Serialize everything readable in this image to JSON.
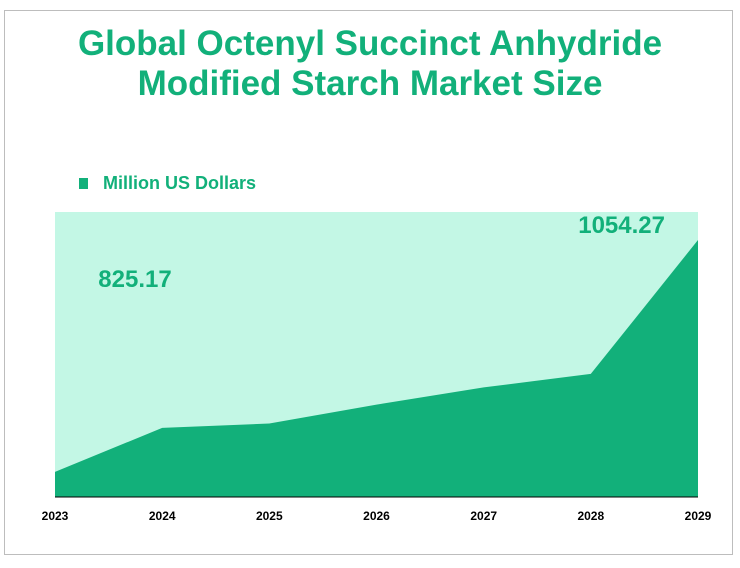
{
  "chart_data": {
    "type": "area",
    "title_lines": [
      "Global Octenyl Succinct Anhydride",
      "Modified Starch Market Size"
    ],
    "series": [
      {
        "name": "Million US Dollars",
        "values": [
          771.5,
          825.17,
          830.5,
          853.5,
          874.5,
          891.0,
          1054.27
        ]
      }
    ],
    "categories": [
      "2023",
      "2024",
      "2025",
      "2026",
      "2027",
      "2028",
      "2029"
    ],
    "data_labels": [
      {
        "category": "2024",
        "text": "825.17"
      },
      {
        "category": "2029",
        "text": "1054.27"
      }
    ],
    "legend_placement": "top-left",
    "grid": false,
    "colors": {
      "area": "#12b07a",
      "plot_background": "#c3f7e5",
      "title": "#12b07a",
      "text": "#000000"
    }
  }
}
